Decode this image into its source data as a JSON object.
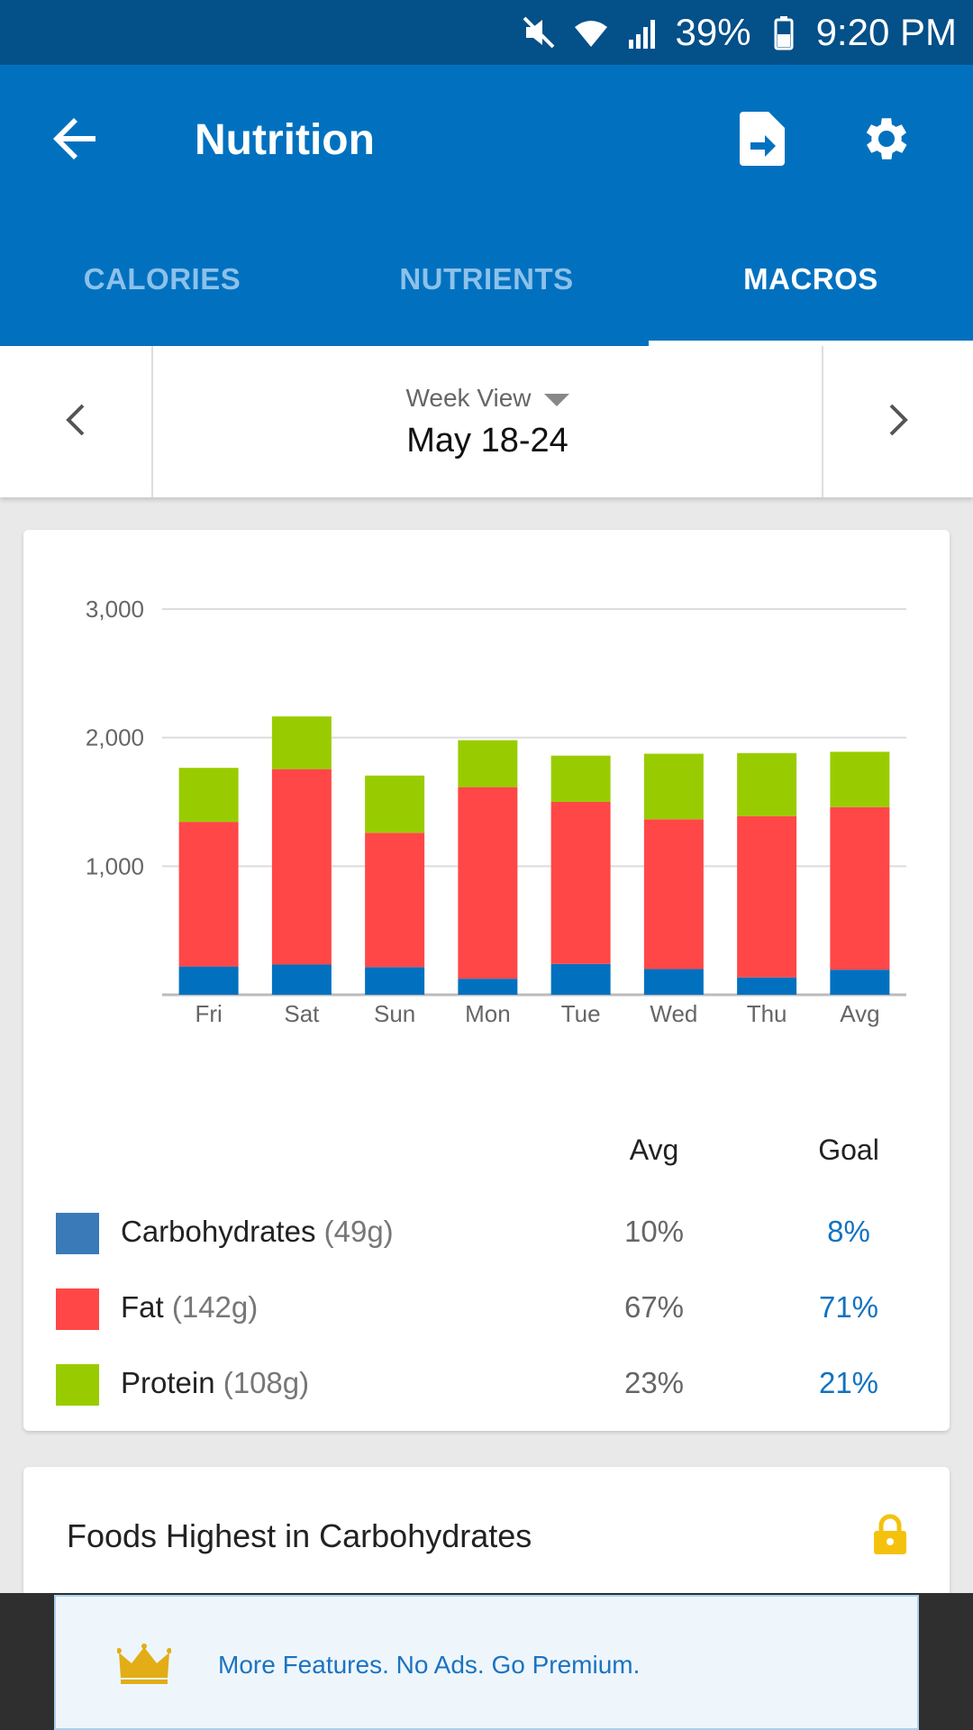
{
  "status_bar": {
    "battery": "39%",
    "time": "9:20 PM",
    "icons": [
      "mute-icon",
      "wifi-icon",
      "signal-icon",
      "battery-icon"
    ]
  },
  "app_bar": {
    "title": "Nutrition",
    "icons": [
      "back-arrow-icon",
      "export-file-icon",
      "gear-icon"
    ]
  },
  "tabs": [
    {
      "label": "CALORIES",
      "active": false
    },
    {
      "label": "NUTRIENTS",
      "active": false
    },
    {
      "label": "MACROS",
      "active": true
    }
  ],
  "date_nav": {
    "view_label": "Week View",
    "range": "May 18-24"
  },
  "colors": {
    "primary": "#0171bf",
    "carbs": "#0171bf",
    "fat": "#ff4747",
    "protein": "#99cc00",
    "goal_text": "#1272bf"
  },
  "chart_data": {
    "type": "bar",
    "stacked": true,
    "categories": [
      "Fri",
      "Sat",
      "Sun",
      "Mon",
      "Tue",
      "Wed",
      "Thu",
      "Avg"
    ],
    "series": [
      {
        "name": "Carbohydrates",
        "color": "#0171bf",
        "values": [
          220,
          235,
          215,
          125,
          240,
          200,
          135,
          195
        ]
      },
      {
        "name": "Fat",
        "color": "#ff4747",
        "values": [
          1125,
          1520,
          1045,
          1490,
          1260,
          1165,
          1255,
          1265
        ]
      },
      {
        "name": "Protein",
        "color": "#99cc00",
        "values": [
          420,
          410,
          445,
          365,
          360,
          510,
          490,
          430
        ]
      }
    ],
    "y_ticks": [
      "1,000",
      "2,000",
      "3,000"
    ],
    "ylim": [
      0,
      3000
    ],
    "grid": true
  },
  "macros_table": {
    "header_avg": "Avg",
    "header_goal": "Goal",
    "rows": [
      {
        "name": "Carbohydrates",
        "grams": "(49g)",
        "avg": "10%",
        "goal": "8%",
        "color": "#3a7ab8"
      },
      {
        "name": "Fat",
        "grams": "(142g)",
        "avg": "67%",
        "goal": "71%",
        "color": "#ff4747"
      },
      {
        "name": "Protein",
        "grams": "(108g)",
        "avg": "23%",
        "goal": "21%",
        "color": "#99cc00"
      }
    ]
  },
  "foods_card": {
    "title": "Foods Highest in Carbohydrates"
  },
  "ad": {
    "text": "More Features. No Ads. Go Premium."
  }
}
